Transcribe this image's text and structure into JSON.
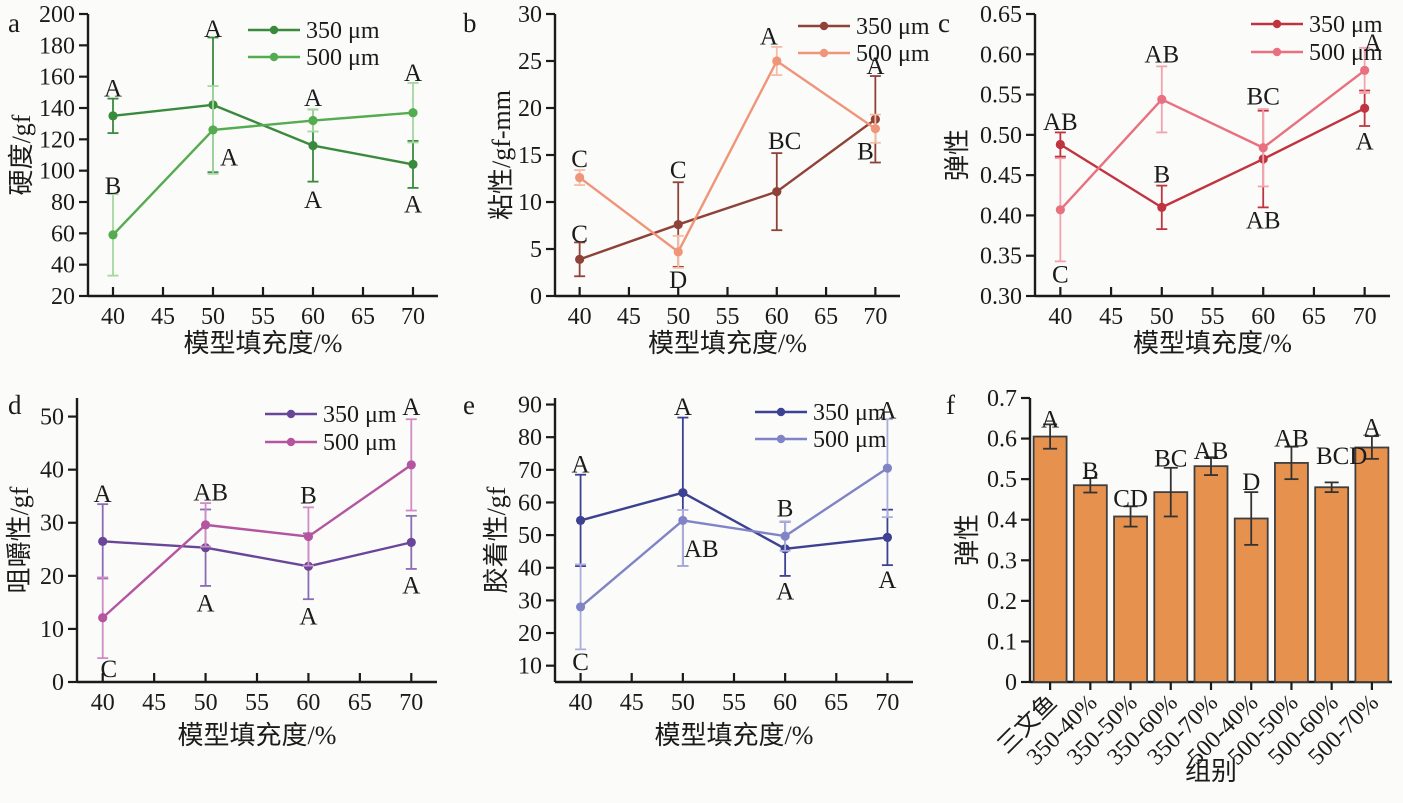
{
  "figure": {
    "background": "#fbfbf9",
    "text_color": "#1b1b1b",
    "axis_color": "#1b1b1b",
    "sig_letter_color": "#2a2a2a"
  },
  "chart_data": [
    {
      "id": "a",
      "type": "line",
      "panel_label": "a",
      "xlabel": "模型填充度/%",
      "ylabel": "硬度/gf",
      "xlim": [
        37.5,
        72.5
      ],
      "ylim": [
        20,
        200
      ],
      "xticks": [
        40,
        45,
        50,
        55,
        60,
        65,
        70
      ],
      "yticks": [
        20,
        40,
        60,
        80,
        100,
        120,
        140,
        160,
        180,
        200
      ],
      "ytick_labels": [
        "20",
        "40",
        "60",
        "80",
        "100",
        "120",
        "140",
        "160",
        "180",
        "200"
      ],
      "legend_position": "top-right-inside",
      "grid": false,
      "series": [
        {
          "name": "350 μm",
          "color": "#3a8a3e",
          "err_color": "#3a8a3e",
          "x": [
            40,
            50,
            60,
            70
          ],
          "y": [
            135,
            142,
            116,
            104
          ],
          "err": [
            11,
            43,
            23,
            15
          ],
          "letters": [
            {
              "x": 40,
              "y": 153,
              "t": "A"
            },
            {
              "x": 50,
              "y": 191,
              "t": "A"
            },
            {
              "x": 60,
              "y": 82,
              "t": "A"
            },
            {
              "x": 70,
              "y": 79,
              "t": "A"
            }
          ]
        },
        {
          "name": "500 μm",
          "color": "#55ab4f",
          "err_color": "#a6d7a0",
          "x": [
            40,
            50,
            60,
            70
          ],
          "y": [
            59,
            126,
            132,
            137
          ],
          "err": [
            26,
            28,
            7,
            19
          ],
          "letters": [
            {
              "x": 40,
              "y": 91,
              "t": "B"
            },
            {
              "x": 51.6,
              "y": 109,
              "t": "A"
            },
            {
              "x": 60,
              "y": 147,
              "t": "A"
            },
            {
              "x": 70,
              "y": 163,
              "t": "A"
            }
          ]
        }
      ]
    },
    {
      "id": "b",
      "type": "line",
      "panel_label": "b",
      "xlabel": "模型填充度/%",
      "ylabel": "粘性/gf-mm",
      "xlim": [
        37.5,
        72.5
      ],
      "ylim": [
        0,
        30
      ],
      "xticks": [
        40,
        45,
        50,
        55,
        60,
        65,
        70
      ],
      "yticks": [
        0,
        5,
        10,
        15,
        20,
        25,
        30
      ],
      "ytick_labels": [
        "0",
        "5",
        "10",
        "15",
        "20",
        "25",
        "30"
      ],
      "legend_position": "top-right-inside",
      "grid": false,
      "series": [
        {
          "name": "350 μm",
          "color": "#8f4238",
          "err_color": "#8f4238",
          "x": [
            40,
            50,
            60,
            70
          ],
          "y": [
            3.9,
            7.6,
            11.1,
            18.8
          ],
          "err": [
            1.8,
            4.5,
            4.1,
            4.6
          ],
          "letters": [
            {
              "x": 40,
              "y": 6.7,
              "t": "C"
            },
            {
              "x": 50,
              "y": 13.5,
              "t": "C"
            },
            {
              "x": 60.8,
              "y": 16.6,
              "t": "BC"
            },
            {
              "x": 70,
              "y": 24.6,
              "t": "A"
            }
          ]
        },
        {
          "name": "500 μm",
          "color": "#ef9579",
          "err_color": "#f5bda6",
          "x": [
            40,
            50,
            60,
            70
          ],
          "y": [
            12.6,
            4.7,
            25.0,
            17.8
          ],
          "err": [
            0.8,
            1.7,
            1.5,
            1.5
          ],
          "letters": [
            {
              "x": 40,
              "y": 14.7,
              "t": "C"
            },
            {
              "x": 50,
              "y": 1.8,
              "t": "D"
            },
            {
              "x": 59.2,
              "y": 27.7,
              "t": "A"
            },
            {
              "x": 69,
              "y": 15.5,
              "t": "B"
            }
          ]
        }
      ]
    },
    {
      "id": "c",
      "type": "line",
      "panel_label": "c",
      "xlabel": "模型填充度/%",
      "ylabel": "弹性",
      "xlim": [
        37.5,
        72.5
      ],
      "ylim": [
        0.3,
        0.65
      ],
      "xticks": [
        40,
        45,
        50,
        55,
        60,
        65,
        70
      ],
      "yticks": [
        0.3,
        0.35,
        0.4,
        0.45,
        0.5,
        0.55,
        0.6,
        0.65
      ],
      "ytick_labels": [
        "0.30",
        "0.35",
        "0.40",
        "0.45",
        "0.50",
        "0.55",
        "0.60",
        "0.65"
      ],
      "legend_position": "top-right-inside",
      "grid": false,
      "series": [
        {
          "name": "350 μm",
          "color": "#c03440",
          "err_color": "#c03440",
          "x": [
            40,
            50,
            60,
            70
          ],
          "y": [
            0.488,
            0.41,
            0.47,
            0.533
          ],
          "err": [
            0.015,
            0.027,
            0.06,
            0.022
          ],
          "letters": [
            {
              "x": 40,
              "y": 0.517,
              "t": "AB"
            },
            {
              "x": 50,
              "y": 0.452,
              "t": "B"
            },
            {
              "x": 60,
              "y": 0.395,
              "t": "AB"
            },
            {
              "x": 70,
              "y": 0.493,
              "t": "A"
            }
          ]
        },
        {
          "name": "500 μm",
          "color": "#e9707e",
          "err_color": "#f3a3ad",
          "x": [
            40,
            50,
            60,
            70
          ],
          "y": [
            0.407,
            0.544,
            0.484,
            0.58
          ],
          "err": [
            0.064,
            0.041,
            0.048,
            0.028
          ],
          "letters": [
            {
              "x": 40,
              "y": 0.328,
              "t": "C"
            },
            {
              "x": 50,
              "y": 0.601,
              "t": "AB"
            },
            {
              "x": 60,
              "y": 0.549,
              "t": "BC"
            },
            {
              "x": 70.8,
              "y": 0.615,
              "t": "A"
            }
          ]
        }
      ]
    },
    {
      "id": "d",
      "type": "line",
      "panel_label": "d",
      "xlabel": "模型填充度/%",
      "ylabel": "咀嚼性/gf",
      "xlim": [
        37.5,
        72.5
      ],
      "ylim": [
        0,
        53.5
      ],
      "xticks": [
        40,
        45,
        50,
        55,
        60,
        65,
        70
      ],
      "yticks": [
        0,
        10,
        20,
        30,
        40,
        50
      ],
      "ytick_labels": [
        "0",
        "10",
        "20",
        "30",
        "40",
        "50"
      ],
      "legend_position": "top-right-inside",
      "grid": false,
      "series": [
        {
          "name": "350 μm",
          "color": "#6a4699",
          "err_color": "#8a6cb5",
          "x": [
            40,
            50,
            60,
            70
          ],
          "y": [
            26.5,
            25.3,
            21.8,
            26.3
          ],
          "err": [
            7,
            7.2,
            6.2,
            5
          ],
          "letters": [
            {
              "x": 40,
              "y": 35.6,
              "t": "A"
            },
            {
              "x": 50,
              "y": 15.0,
              "t": "A"
            },
            {
              "x": 60,
              "y": 12.5,
              "t": "A"
            },
            {
              "x": 70,
              "y": 18.4,
              "t": "A"
            }
          ]
        },
        {
          "name": "500 μm",
          "color": "#b455a0",
          "err_color": "#d08cc4",
          "x": [
            40,
            50,
            60,
            70
          ],
          "y": [
            12.1,
            29.6,
            27.4,
            40.9
          ],
          "err": [
            7.6,
            4.1,
            5.5,
            8.6
          ],
          "letters": [
            {
              "x": 40.6,
              "y": 2.6,
              "t": "C"
            },
            {
              "x": 50.5,
              "y": 35.9,
              "t": "AB"
            },
            {
              "x": 60,
              "y": 35.3,
              "t": "B"
            },
            {
              "x": 70,
              "y": 52.0,
              "t": "A"
            }
          ]
        }
      ]
    },
    {
      "id": "e",
      "type": "line",
      "panel_label": "e",
      "xlabel": "模型填充度/%",
      "ylabel": "胶着性/gf",
      "xlim": [
        37.5,
        72.5
      ],
      "ylim": [
        5,
        92
      ],
      "xticks": [
        40,
        45,
        50,
        55,
        60,
        65,
        70
      ],
      "yticks": [
        10,
        20,
        30,
        40,
        50,
        60,
        70,
        80,
        90
      ],
      "ytick_labels": [
        "10",
        "20",
        "30",
        "40",
        "50",
        "60",
        "70",
        "80",
        "90"
      ],
      "legend_position": "top-right-inside",
      "grid": false,
      "series": [
        {
          "name": "350 μm",
          "color": "#3c4191",
          "err_color": "#3c4191",
          "x": [
            40,
            50,
            60,
            70
          ],
          "y": [
            54.5,
            63,
            45.8,
            49.3
          ],
          "err": [
            14,
            [
              22.5,
              23
            ],
            8.3,
            8.5
          ],
          "letters": [
            {
              "x": 40,
              "y": 72,
              "t": "A"
            },
            {
              "x": 50,
              "y": 89.5,
              "t": "A"
            },
            {
              "x": 60,
              "y": 33,
              "t": "A"
            },
            {
              "x": 70,
              "y": 36.5,
              "t": "A"
            }
          ]
        },
        {
          "name": "500 μm",
          "color": "#8084c6",
          "err_color": "#abaedd",
          "x": [
            40,
            50,
            60,
            70
          ],
          "y": [
            28,
            54.5,
            49.7,
            70.5
          ],
          "err": [
            13,
            [
              14,
              3.2
            ],
            4.5,
            15
          ],
          "letters": [
            {
              "x": 40,
              "y": 11.5,
              "t": "C"
            },
            {
              "x": 51.8,
              "y": 46,
              "t": "AB"
            },
            {
              "x": 60,
              "y": 58.5,
              "t": "B"
            },
            {
              "x": 70,
              "y": 88.5,
              "t": "A"
            }
          ]
        }
      ]
    },
    {
      "id": "f",
      "type": "bar",
      "panel_label": "f",
      "xlabel": "组别",
      "ylabel": "弹性",
      "ylim": [
        0,
        0.7
      ],
      "yticks": [
        0,
        0.1,
        0.2,
        0.3,
        0.4,
        0.5,
        0.6,
        0.7
      ],
      "ytick_labels": [
        "0",
        "0.1",
        "0.2",
        "0.3",
        "0.4",
        "0.5",
        "0.6",
        "0.7"
      ],
      "grid": false,
      "bar_color": "#e6924e",
      "bar_edge": "#3f3f3f",
      "err_color": "#333333",
      "categories": [
        "三文鱼",
        "350-40%",
        "350-50%",
        "350-60%",
        "350-70%",
        "500-40%",
        "500-50%",
        "500-60%",
        "500-70%"
      ],
      "values": [
        0.605,
        0.485,
        0.408,
        0.468,
        0.532,
        0.403,
        0.54,
        0.48,
        0.578
      ],
      "errors": [
        0.03,
        0.018,
        0.025,
        0.06,
        0.022,
        0.065,
        0.04,
        0.012,
        0.028
      ],
      "letters": [
        {
          "i": 0,
          "y": 0.65,
          "t": "A"
        },
        {
          "i": 1,
          "y": 0.522,
          "t": "B"
        },
        {
          "i": 2,
          "y": 0.455,
          "t": "CD"
        },
        {
          "i": 3,
          "y": 0.553,
          "t": "BC"
        },
        {
          "i": 4,
          "y": 0.572,
          "t": "AB"
        },
        {
          "i": 5,
          "y": 0.495,
          "t": "D"
        },
        {
          "i": 6,
          "y": 0.603,
          "t": "AB"
        },
        {
          "i": 7,
          "y": 0.56,
          "t": "BCD",
          "dx": 10
        },
        {
          "i": 8,
          "y": 0.63,
          "t": "A"
        }
      ]
    }
  ]
}
